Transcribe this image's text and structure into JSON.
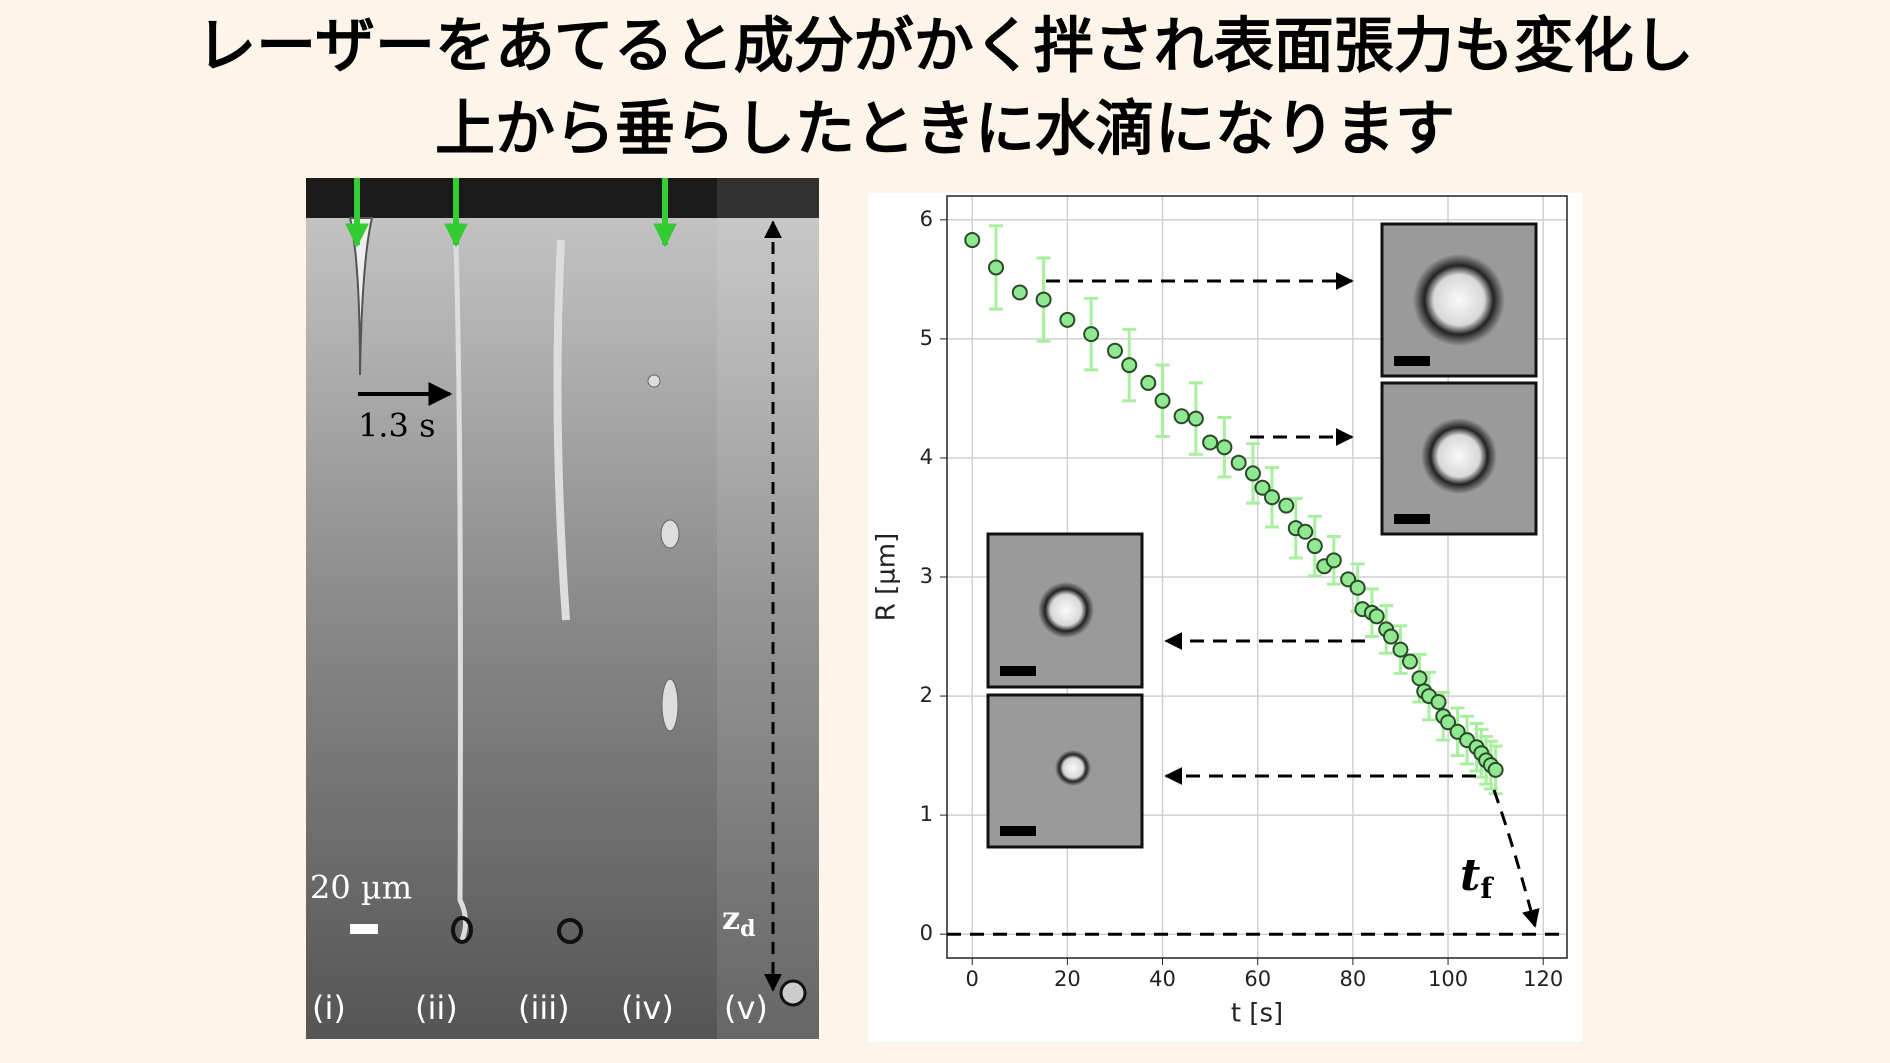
{
  "title": {
    "lines": [
      "レーザーをあてると成分がかく拌され表面張力も変化し",
      "上から垂らしたときに水滴になります"
    ]
  },
  "photo": {
    "time_label": "1.3 s",
    "scale_label": "20 µm",
    "z_label": {
      "main": "z",
      "sub": "d"
    },
    "panels": [
      "(i)",
      "(ii)",
      "(iii)",
      "(iv)",
      "(v)"
    ]
  },
  "chart_data": {
    "type": "scatter",
    "xlabel": "t [s]",
    "ylabel": "R [µm]",
    "annotation": {
      "main": "t",
      "sub": "f"
    },
    "x": [
      0,
      5,
      10,
      15,
      20,
      25,
      30,
      33,
      37,
      40,
      44,
      47,
      50,
      53,
      56,
      59,
      61,
      63,
      66,
      68,
      70,
      72,
      74,
      76,
      79,
      81,
      82,
      84,
      85,
      87,
      88,
      90,
      92,
      94,
      95,
      96,
      98,
      99,
      100,
      102,
      104,
      106,
      107,
      108,
      109,
      110
    ],
    "values": [
      5.83,
      5.6,
      5.39,
      5.33,
      5.16,
      5.04,
      4.9,
      4.78,
      4.63,
      4.48,
      4.35,
      4.33,
      4.13,
      4.09,
      3.96,
      3.87,
      3.75,
      3.67,
      3.6,
      3.41,
      3.38,
      3.26,
      3.09,
      3.14,
      2.98,
      2.91,
      2.73,
      2.7,
      2.67,
      2.56,
      2.5,
      2.39,
      2.29,
      2.15,
      2.04,
      2.0,
      1.95,
      1.83,
      1.78,
      1.7,
      1.63,
      1.57,
      1.52,
      1.46,
      1.42,
      1.38
    ],
    "errors": [
      null,
      0.35,
      null,
      0.35,
      null,
      0.3,
      null,
      0.3,
      null,
      0.3,
      null,
      0.3,
      null,
      0.25,
      null,
      0.25,
      null,
      0.25,
      null,
      0.25,
      null,
      0.25,
      null,
      0.2,
      null,
      0.2,
      null,
      0.2,
      null,
      0.2,
      null,
      0.2,
      null,
      0.2,
      null,
      0.2,
      null,
      0.2,
      null,
      0.2,
      0.2,
      0.2,
      0.2,
      0.2,
      0.2,
      0.2
    ],
    "color": "#90e890",
    "error_color": "#a8f0a0",
    "edge_color": "#2a4a2a",
    "xlim": [
      -5.3,
      125
    ],
    "ylim": [
      -0.2,
      6.2
    ],
    "xticks": [
      0,
      20,
      40,
      60,
      80,
      100,
      120
    ],
    "yticks": [
      0,
      1,
      2,
      3,
      4,
      5,
      6
    ],
    "grid": true,
    "reference_line": 0
  }
}
